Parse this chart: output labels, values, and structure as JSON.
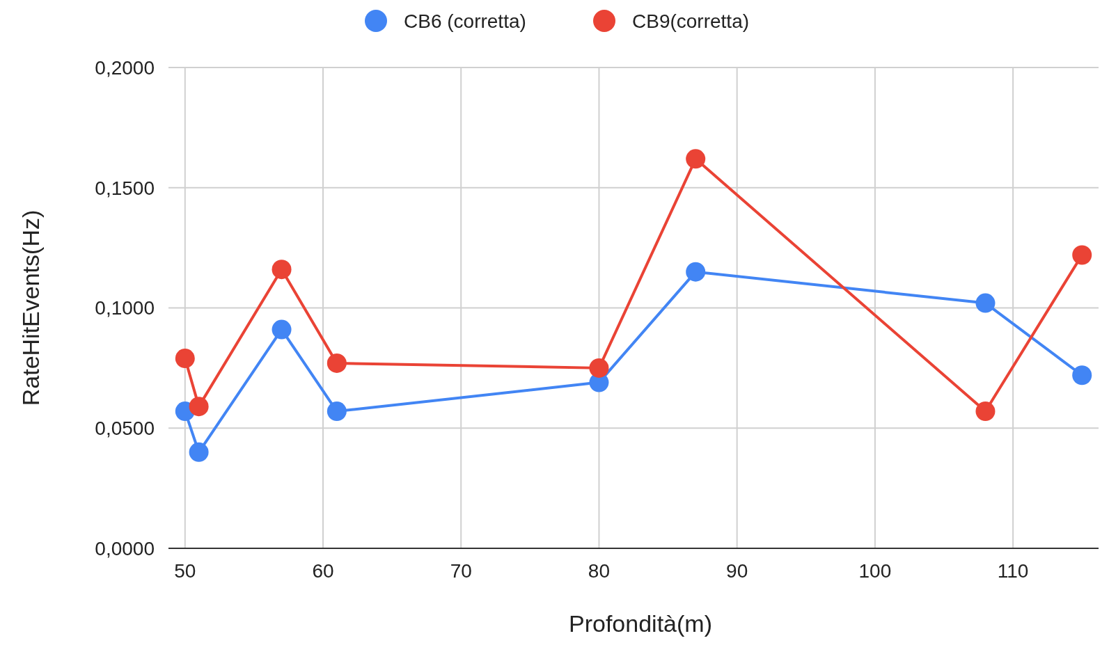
{
  "chart_data": {
    "type": "line",
    "xlabel": "Profondità(m)",
    "ylabel": "RateHitEvents(Hz)",
    "x": [
      50,
      51,
      57,
      61,
      80,
      87,
      108,
      115
    ],
    "series": [
      {
        "name": "CB6 (corretta)",
        "color": "#4285f4",
        "values": [
          0.057,
          0.04,
          0.091,
          0.057,
          0.069,
          0.115,
          0.102,
          0.072
        ]
      },
      {
        "name": "CB9(corretta)",
        "color": "#ea4335",
        "values": [
          0.079,
          0.059,
          0.116,
          0.077,
          0.075,
          0.162,
          0.057,
          0.122
        ]
      }
    ],
    "xlim": [
      48.8,
      116.2
    ],
    "xticks": [
      50,
      60,
      70,
      80,
      90,
      100,
      110
    ],
    "ylim": [
      0,
      0.2
    ],
    "yticks": [
      {
        "value": 0,
        "label": "0,0000"
      },
      {
        "value": 0.05,
        "label": "0,0500"
      },
      {
        "value": 0.1,
        "label": "0,1000"
      },
      {
        "value": 0.15,
        "label": "0,1500"
      },
      {
        "value": 0.2,
        "label": "0,2000"
      }
    ],
    "grid": true,
    "legend": "top",
    "marker": "circle",
    "line_style": "solid"
  }
}
